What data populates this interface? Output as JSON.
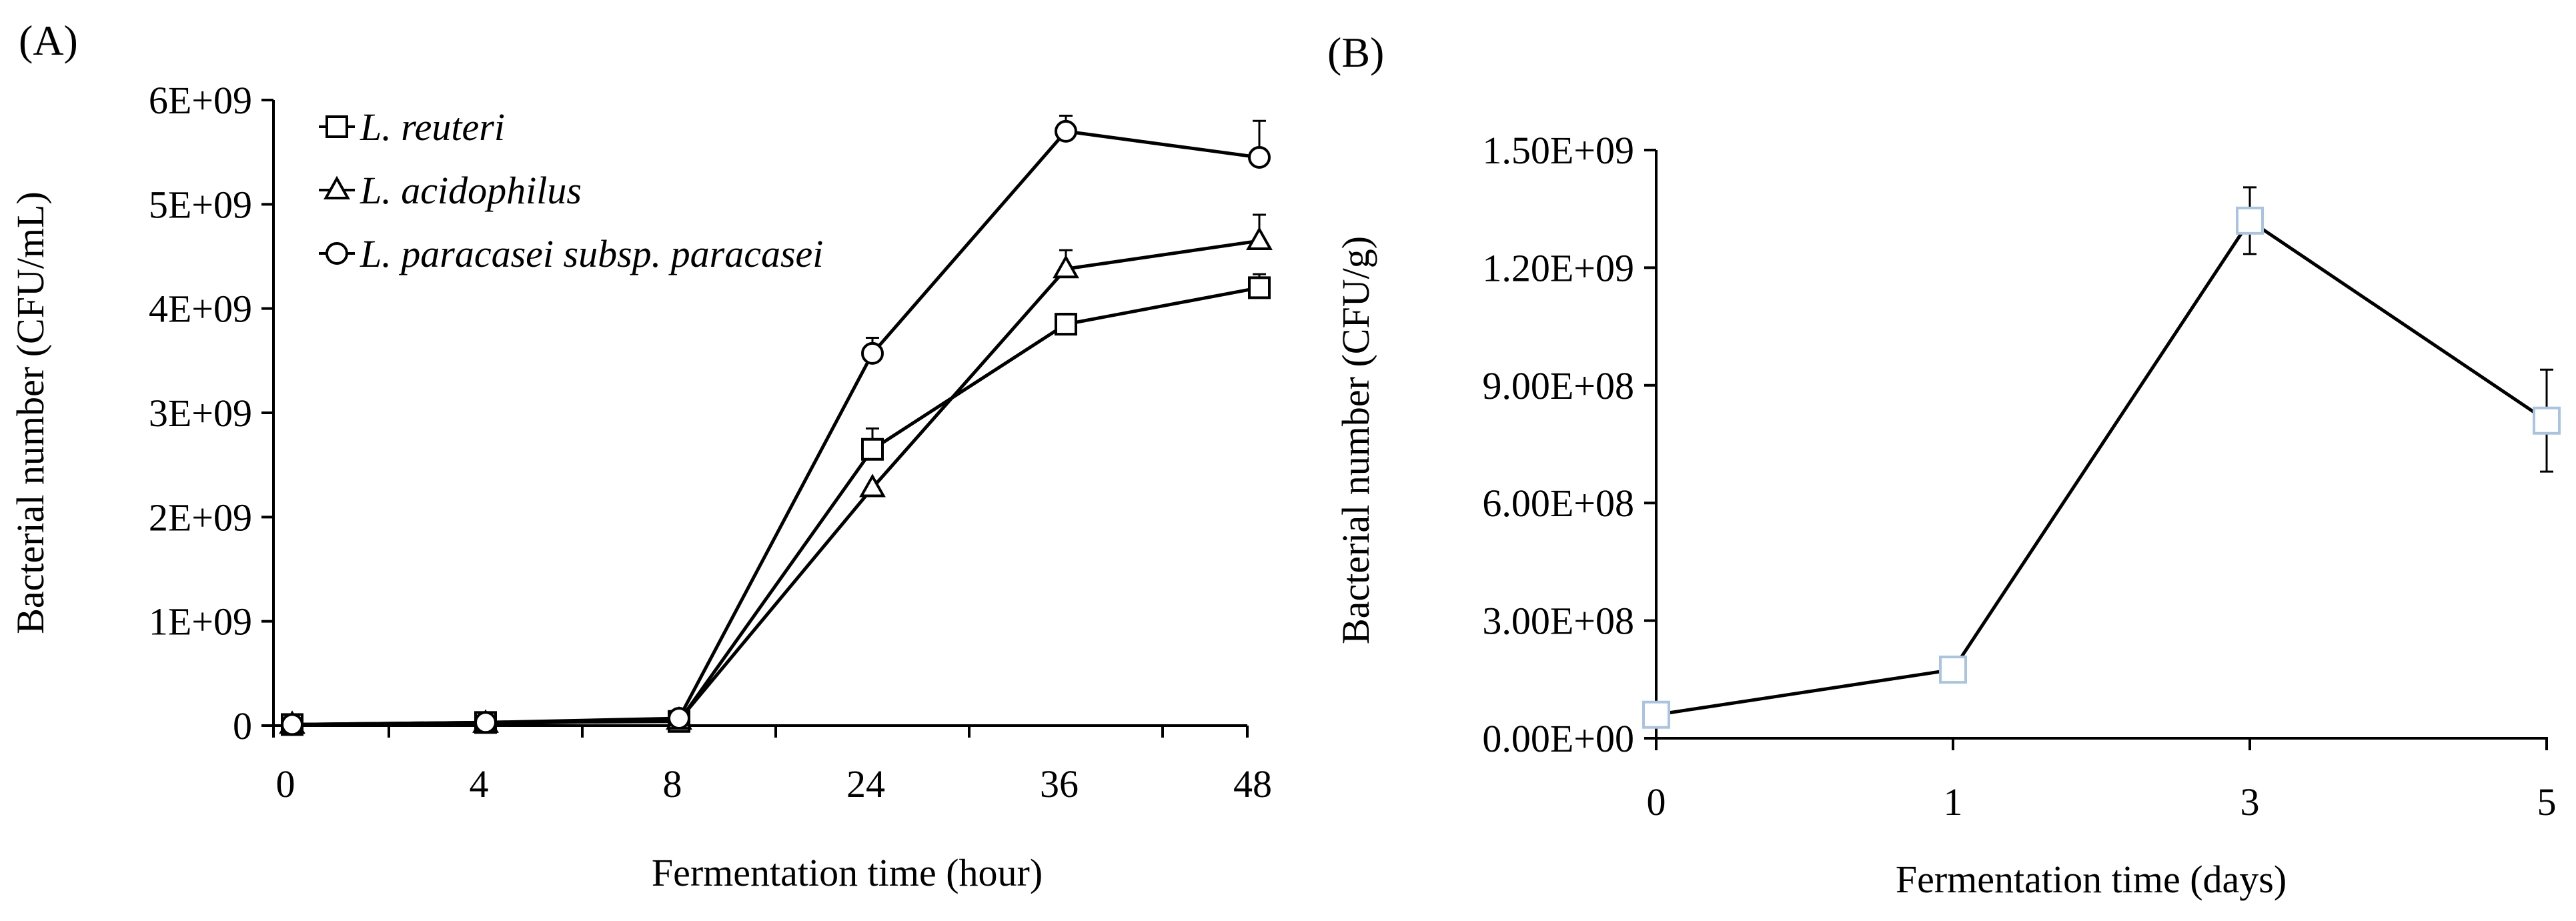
{
  "chart_data": [
    {
      "panel_label": "(A)",
      "type": "line",
      "categories": [
        "0",
        "4",
        "8",
        "24",
        "36",
        "48"
      ],
      "xlabel": "Fermentation time (hour)",
      "ylabel": "Bacterial number (CFU/mL)",
      "ylim": [
        0,
        6000000000
      ],
      "yticks": [
        0,
        1000000000,
        2000000000,
        3000000000,
        4000000000,
        5000000000,
        6000000000
      ],
      "ytick_labels": [
        "0",
        "1E+09",
        "2E+09",
        "3E+09",
        "4E+09",
        "5E+09",
        "6E+09"
      ],
      "grid": false,
      "legend_position": "top-left",
      "series": [
        {
          "name": "L. reuteri",
          "marker": "square",
          "values": [
            10000000,
            30000000,
            40000000,
            2650000000,
            3850000000,
            4200000000
          ],
          "errors": [
            0,
            0,
            0,
            200000000,
            100000000,
            130000000
          ]
        },
        {
          "name": "L. acidophilus",
          "marker": "triangle",
          "values": [
            10000000,
            20000000,
            50000000,
            2280000000,
            4380000000,
            4650000000
          ],
          "errors": [
            0,
            0,
            0,
            0,
            180000000,
            250000000
          ]
        },
        {
          "name": "L. paracasei subsp. paracasei",
          "marker": "circle",
          "values": [
            10000000,
            30000000,
            70000000,
            3570000000,
            5700000000,
            5450000000
          ],
          "errors": [
            0,
            0,
            0,
            150000000,
            150000000,
            350000000
          ]
        }
      ],
      "colors": {
        "line": "#000000",
        "marker_fill": "#ffffff"
      }
    },
    {
      "panel_label": "(B)",
      "type": "line",
      "categories": [
        "0",
        "1",
        "3",
        "5"
      ],
      "xlabel": "Fermentation time (days)",
      "ylabel": "Bacterial number (CFU/g)",
      "ylim": [
        0,
        1500000000
      ],
      "yticks": [
        0,
        300000000,
        600000000,
        900000000,
        1200000000,
        1500000000
      ],
      "ytick_labels": [
        "0.00E+00",
        "3.00E+08",
        "6.00E+08",
        "9.00E+08",
        "1.20E+09",
        "1.50E+09"
      ],
      "grid": false,
      "series": [
        {
          "marker": "square",
          "values": [
            60000000,
            175000000,
            1320000000,
            810000000
          ],
          "errors": [
            0,
            15000000,
            85000000,
            130000000
          ]
        }
      ],
      "colors": {
        "line": "#000000",
        "marker_edge": "#a9c4e2",
        "marker_fill": "#ffffff"
      }
    }
  ]
}
